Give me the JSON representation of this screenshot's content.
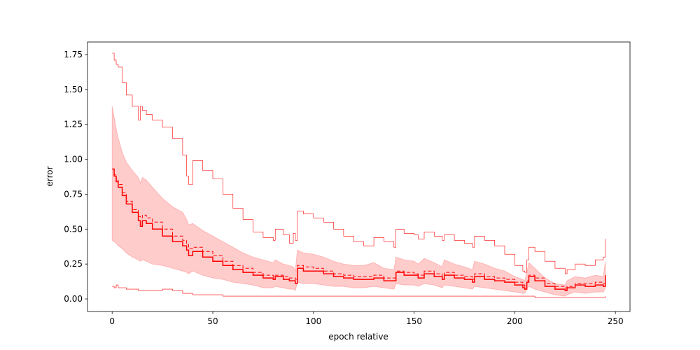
{
  "chart_data": {
    "type": "line",
    "title": "",
    "xlabel": "epoch relative",
    "ylabel": "error",
    "xlim": [
      -12.25,
      257.25
    ],
    "ylim": [
      -0.09,
      1.84
    ],
    "grid": false,
    "legend": "none",
    "x_ticks": [
      0,
      50,
      100,
      150,
      200,
      250
    ],
    "x_tick_labels": [
      "0",
      "50",
      "100",
      "150",
      "200",
      "250"
    ],
    "y_ticks": [
      0.0,
      0.25,
      0.5,
      0.75,
      1.0,
      1.25,
      1.5,
      1.75
    ],
    "y_tick_labels": [
      "0.00",
      "0.25",
      "0.50",
      "0.75",
      "1.00",
      "1.25",
      "1.50",
      "1.75"
    ],
    "colors": {
      "line": "#ff0000",
      "band": "#ff0000"
    },
    "x": [
      0,
      1,
      2,
      3,
      5,
      7,
      10,
      13,
      14,
      15,
      17,
      20,
      25,
      30,
      35,
      37,
      38,
      40,
      45,
      50,
      55,
      60,
      65,
      70,
      75,
      80,
      81,
      85,
      88,
      90,
      91,
      92,
      95,
      100,
      105,
      110,
      115,
      120,
      125,
      130,
      135,
      140,
      141,
      145,
      150,
      152,
      155,
      160,
      164,
      165,
      170,
      175,
      179,
      180,
      185,
      190,
      195,
      200,
      204,
      205,
      206,
      207,
      210,
      215,
      220,
      225,
      226,
      230,
      235,
      240,
      244,
      245
    ],
    "series": [
      {
        "style": "solid",
        "values": [
          0.93,
          0.88,
          0.84,
          0.8,
          0.74,
          0.68,
          0.62,
          0.56,
          0.52,
          0.56,
          0.54,
          0.5,
          0.45,
          0.41,
          0.38,
          0.35,
          0.31,
          0.34,
          0.3,
          0.27,
          0.24,
          0.21,
          0.19,
          0.17,
          0.15,
          0.14,
          0.16,
          0.14,
          0.13,
          0.13,
          0.11,
          0.22,
          0.2,
          0.2,
          0.18,
          0.16,
          0.15,
          0.14,
          0.14,
          0.15,
          0.13,
          0.13,
          0.19,
          0.17,
          0.17,
          0.15,
          0.18,
          0.16,
          0.14,
          0.17,
          0.15,
          0.14,
          0.12,
          0.16,
          0.14,
          0.13,
          0.12,
          0.1,
          0.08,
          0.07,
          0.12,
          0.16,
          0.13,
          0.09,
          0.07,
          0.06,
          0.08,
          0.1,
          0.09,
          0.1,
          0.09,
          0.17
        ]
      },
      {
        "style": "dashed",
        "values": [
          0.93,
          0.89,
          0.86,
          0.82,
          0.76,
          0.7,
          0.64,
          0.59,
          0.58,
          0.6,
          0.58,
          0.55,
          0.5,
          0.45,
          0.42,
          0.39,
          0.36,
          0.37,
          0.34,
          0.31,
          0.27,
          0.24,
          0.22,
          0.19,
          0.17,
          0.16,
          0.17,
          0.16,
          0.15,
          0.15,
          0.14,
          0.24,
          0.23,
          0.22,
          0.2,
          0.18,
          0.17,
          0.16,
          0.16,
          0.17,
          0.15,
          0.15,
          0.2,
          0.19,
          0.18,
          0.17,
          0.2,
          0.18,
          0.16,
          0.19,
          0.17,
          0.16,
          0.14,
          0.18,
          0.16,
          0.15,
          0.14,
          0.12,
          0.1,
          0.09,
          0.13,
          0.17,
          0.15,
          0.11,
          0.09,
          0.08,
          0.09,
          0.11,
          0.11,
          0.12,
          0.11,
          0.15
        ]
      },
      {
        "style": "thin",
        "values": [
          1.76,
          1.71,
          1.68,
          1.66,
          1.55,
          1.46,
          1.38,
          1.28,
          1.38,
          1.35,
          1.32,
          1.28,
          1.23,
          1.15,
          1.03,
          0.88,
          0.82,
          0.99,
          0.92,
          0.86,
          0.75,
          0.65,
          0.57,
          0.48,
          0.44,
          0.42,
          0.5,
          0.46,
          0.4,
          0.47,
          0.42,
          0.63,
          0.61,
          0.58,
          0.55,
          0.5,
          0.45,
          0.41,
          0.38,
          0.44,
          0.41,
          0.37,
          0.5,
          0.47,
          0.46,
          0.43,
          0.48,
          0.45,
          0.42,
          0.46,
          0.42,
          0.4,
          0.37,
          0.45,
          0.42,
          0.38,
          0.32,
          0.24,
          0.2,
          0.19,
          0.28,
          0.37,
          0.34,
          0.27,
          0.22,
          0.18,
          0.21,
          0.25,
          0.24,
          0.28,
          0.3,
          0.43
        ]
      },
      {
        "style": "thin",
        "values": [
          0.09,
          0.08,
          0.1,
          0.08,
          0.08,
          0.07,
          0.07,
          0.06,
          0.06,
          0.06,
          0.06,
          0.06,
          0.07,
          0.06,
          0.04,
          0.04,
          0.04,
          0.03,
          0.03,
          0.03,
          0.02,
          0.02,
          0.02,
          0.02,
          0.02,
          0.02,
          0.02,
          0.02,
          0.02,
          0.02,
          0.02,
          0.02,
          0.02,
          0.02,
          0.02,
          0.02,
          0.02,
          0.02,
          0.02,
          0.02,
          0.02,
          0.02,
          0.02,
          0.02,
          0.02,
          0.02,
          0.02,
          0.02,
          0.02,
          0.02,
          0.02,
          0.02,
          0.02,
          0.02,
          0.02,
          0.02,
          0.02,
          0.02,
          0.02,
          0.02,
          0.02,
          0.02,
          0.01,
          0.01,
          0.01,
          0.01,
          0.01,
          0.01,
          0.01,
          0.01,
          0.01,
          0.02
        ]
      }
    ],
    "band": {
      "lower": [
        0.42,
        0.41,
        0.4,
        0.38,
        0.36,
        0.33,
        0.3,
        0.28,
        0.27,
        0.28,
        0.27,
        0.25,
        0.24,
        0.22,
        0.2,
        0.19,
        0.18,
        0.2,
        0.17,
        0.15,
        0.14,
        0.12,
        0.11,
        0.1,
        0.08,
        0.08,
        0.09,
        0.08,
        0.07,
        0.07,
        0.06,
        0.12,
        0.11,
        0.11,
        0.1,
        0.09,
        0.09,
        0.08,
        0.08,
        0.09,
        0.08,
        0.07,
        0.11,
        0.1,
        0.1,
        0.09,
        0.11,
        0.1,
        0.08,
        0.1,
        0.09,
        0.08,
        0.07,
        0.09,
        0.08,
        0.07,
        0.06,
        0.05,
        0.04,
        0.04,
        0.07,
        0.09,
        0.07,
        0.05,
        0.03,
        0.02,
        0.03,
        0.05,
        0.04,
        0.05,
        0.05,
        0.08
      ],
      "upper": [
        1.38,
        1.3,
        1.22,
        1.15,
        1.05,
        0.98,
        0.92,
        0.87,
        0.83,
        0.87,
        0.85,
        0.8,
        0.72,
        0.66,
        0.62,
        0.57,
        0.53,
        0.54,
        0.49,
        0.45,
        0.41,
        0.37,
        0.33,
        0.3,
        0.28,
        0.26,
        0.28,
        0.25,
        0.24,
        0.23,
        0.2,
        0.35,
        0.33,
        0.32,
        0.3,
        0.27,
        0.25,
        0.24,
        0.24,
        0.26,
        0.22,
        0.21,
        0.3,
        0.28,
        0.27,
        0.25,
        0.29,
        0.26,
        0.23,
        0.28,
        0.25,
        0.23,
        0.21,
        0.27,
        0.25,
        0.22,
        0.2,
        0.16,
        0.14,
        0.13,
        0.19,
        0.26,
        0.22,
        0.15,
        0.11,
        0.1,
        0.13,
        0.16,
        0.15,
        0.17,
        0.16,
        0.27
      ]
    }
  }
}
